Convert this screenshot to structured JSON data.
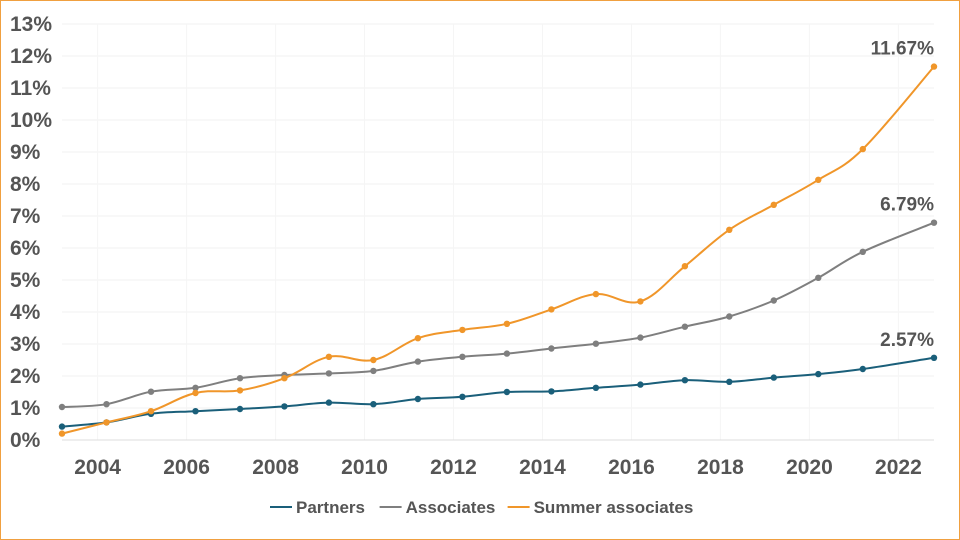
{
  "chart_data": {
    "type": "line",
    "title": "",
    "xlabel": "",
    "ylabel": "",
    "ylim": [
      0,
      13
    ],
    "xlim": [
      2003.2,
      2022.8
    ],
    "y_ticks": [
      "0%",
      "1%",
      "2%",
      "3%",
      "4%",
      "5%",
      "6%",
      "7%",
      "8%",
      "9%",
      "10%",
      "11%",
      "12%",
      "13%"
    ],
    "x_ticks": [
      "2004",
      "2006",
      "2008",
      "2010",
      "2012",
      "2014",
      "2016",
      "2018",
      "2020",
      "2022"
    ],
    "grid": true,
    "legend_position": "bottom",
    "x": [
      2003.2,
      2004.2,
      2005.2,
      2006.2,
      2007.2,
      2008.2,
      2009.2,
      2010.2,
      2011.2,
      2012.2,
      2013.2,
      2014.2,
      2015.2,
      2016.2,
      2017.2,
      2018.2,
      2019.2,
      2020.2,
      2021.2,
      2022.8
    ],
    "series": [
      {
        "name": "Partners",
        "color": "#1a5f7a",
        "values": [
          0.42,
          0.55,
          0.82,
          0.9,
          0.97,
          1.05,
          1.17,
          1.12,
          1.28,
          1.35,
          1.5,
          1.52,
          1.63,
          1.73,
          1.87,
          1.82,
          1.95,
          2.06,
          2.22,
          2.57
        ]
      },
      {
        "name": "Associates",
        "color": "#7f7f7f",
        "values": [
          1.03,
          1.12,
          1.51,
          1.63,
          1.93,
          2.03,
          2.08,
          2.16,
          2.45,
          2.6,
          2.7,
          2.86,
          3.01,
          3.2,
          3.54,
          3.86,
          4.36,
          5.07,
          5.88,
          6.79
        ]
      },
      {
        "name": "Summer associates",
        "color": "#f0962a",
        "values": [
          0.2,
          0.55,
          0.9,
          1.47,
          1.55,
          1.93,
          2.6,
          2.5,
          3.18,
          3.44,
          3.63,
          4.08,
          4.56,
          4.33,
          5.43,
          6.57,
          7.35,
          8.13,
          9.09,
          11.67
        ]
      }
    ],
    "annotations": [
      {
        "series": "Summer associates",
        "text": "11.67%"
      },
      {
        "series": "Associates",
        "text": "6.79%"
      },
      {
        "series": "Partners",
        "text": "2.57%"
      }
    ]
  }
}
